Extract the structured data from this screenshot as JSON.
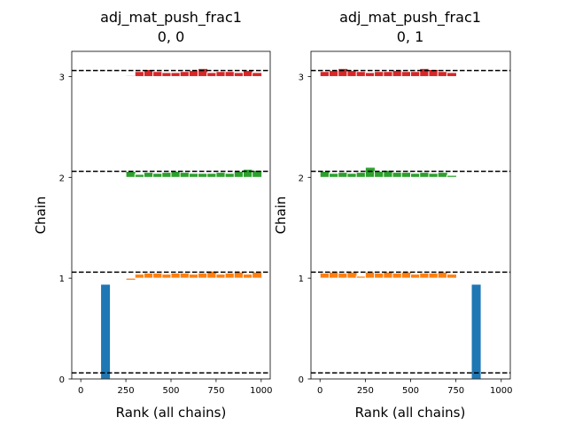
{
  "chart_data": [
    {
      "type": "bar",
      "title": "adj_mat_push_frac1",
      "subtitle": "0, 0",
      "xlabel": "Rank (all chains)",
      "ylabel": "Chain",
      "xlim": [
        -50,
        1050
      ],
      "ylim": [
        0,
        3.25
      ],
      "xticks": [
        0,
        250,
        500,
        750,
        1000
      ],
      "yticks": [
        0,
        1,
        2,
        3
      ],
      "hlines": [
        0.06,
        1.06,
        2.06,
        3.06
      ],
      "series": [
        {
          "chain": 0,
          "color": "#1f77b4",
          "bin_width": 54.1,
          "bins": [
            [
              110,
              0.94
            ]
          ]
        },
        {
          "chain": 1,
          "color": "#ff7f0e",
          "bin_width": 54.1,
          "bins": [
            [
              250,
              0.98
            ],
            [
              300,
              1.04
            ],
            [
              350,
              1.05
            ],
            [
              400,
              1.05
            ],
            [
              450,
              1.04
            ],
            [
              500,
              1.05
            ],
            [
              550,
              1.05
            ],
            [
              600,
              1.04
            ],
            [
              650,
              1.05
            ],
            [
              700,
              1.07
            ],
            [
              750,
              1.04
            ],
            [
              800,
              1.05
            ],
            [
              850,
              1.06
            ],
            [
              900,
              1.04
            ],
            [
              950,
              1.06
            ]
          ]
        },
        {
          "chain": 2,
          "color": "#2ca02c",
          "bin_width": 54.1,
          "bins": [
            [
              250,
              2.06
            ],
            [
              300,
              2.03
            ],
            [
              350,
              2.05
            ],
            [
              400,
              2.04
            ],
            [
              450,
              2.05
            ],
            [
              500,
              2.06
            ],
            [
              550,
              2.05
            ],
            [
              600,
              2.04
            ],
            [
              650,
              2.04
            ],
            [
              700,
              2.04
            ],
            [
              750,
              2.05
            ],
            [
              800,
              2.04
            ],
            [
              850,
              2.06
            ],
            [
              900,
              2.08
            ],
            [
              950,
              2.07
            ]
          ]
        },
        {
          "chain": 3,
          "color": "#d62728",
          "bin_width": 54.1,
          "bins": [
            [
              250,
              3.01
            ],
            [
              300,
              3.05
            ],
            [
              350,
              3.07
            ],
            [
              400,
              3.05
            ],
            [
              450,
              3.04
            ],
            [
              500,
              3.04
            ],
            [
              550,
              3.05
            ],
            [
              600,
              3.06
            ],
            [
              650,
              3.08
            ],
            [
              700,
              3.04
            ],
            [
              750,
              3.05
            ],
            [
              800,
              3.05
            ],
            [
              850,
              3.04
            ],
            [
              900,
              3.06
            ],
            [
              950,
              3.04
            ]
          ]
        }
      ]
    },
    {
      "type": "bar",
      "title": "adj_mat_push_frac1",
      "subtitle": "0, 1",
      "xlabel": "Rank (all chains)",
      "ylabel": "Chain",
      "xlim": [
        -50,
        1050
      ],
      "ylim": [
        0,
        3.25
      ],
      "xticks": [
        0,
        250,
        500,
        750,
        1000
      ],
      "yticks": [
        0,
        1,
        2,
        3
      ],
      "hlines": [
        0.06,
        1.06,
        2.06,
        3.06
      ],
      "series": [
        {
          "chain": 0,
          "color": "#1f77b4",
          "bin_width": 54.1,
          "bins": [
            [
              835,
              0.94
            ]
          ]
        },
        {
          "chain": 1,
          "color": "#ff7f0e",
          "bin_width": 54.1,
          "bins": [
            [
              0,
              1.05
            ],
            [
              50,
              1.06
            ],
            [
              100,
              1.05
            ],
            [
              150,
              1.06
            ],
            [
              200,
              1.02
            ],
            [
              250,
              1.06
            ],
            [
              300,
              1.05
            ],
            [
              350,
              1.06
            ],
            [
              400,
              1.05
            ],
            [
              450,
              1.06
            ],
            [
              500,
              1.04
            ],
            [
              550,
              1.05
            ],
            [
              600,
              1.05
            ],
            [
              650,
              1.06
            ],
            [
              700,
              1.04
            ]
          ]
        },
        {
          "chain": 2,
          "color": "#2ca02c",
          "bin_width": 54.1,
          "bins": [
            [
              0,
              2.06
            ],
            [
              50,
              2.04
            ],
            [
              100,
              2.05
            ],
            [
              150,
              2.04
            ],
            [
              200,
              2.05
            ],
            [
              250,
              2.1
            ],
            [
              300,
              2.06
            ],
            [
              350,
              2.07
            ],
            [
              400,
              2.05
            ],
            [
              450,
              2.05
            ],
            [
              500,
              2.04
            ],
            [
              550,
              2.05
            ],
            [
              600,
              2.04
            ],
            [
              650,
              2.05
            ],
            [
              700,
              2.02
            ]
          ]
        },
        {
          "chain": 3,
          "color": "#d62728",
          "bin_width": 54.1,
          "bins": [
            [
              0,
              3.05
            ],
            [
              50,
              3.06
            ],
            [
              100,
              3.08
            ],
            [
              150,
              3.06
            ],
            [
              200,
              3.05
            ],
            [
              250,
              3.04
            ],
            [
              300,
              3.05
            ],
            [
              350,
              3.05
            ],
            [
              400,
              3.06
            ],
            [
              450,
              3.05
            ],
            [
              500,
              3.05
            ],
            [
              550,
              3.08
            ],
            [
              600,
              3.07
            ],
            [
              650,
              3.05
            ],
            [
              700,
              3.04
            ]
          ]
        }
      ]
    }
  ]
}
